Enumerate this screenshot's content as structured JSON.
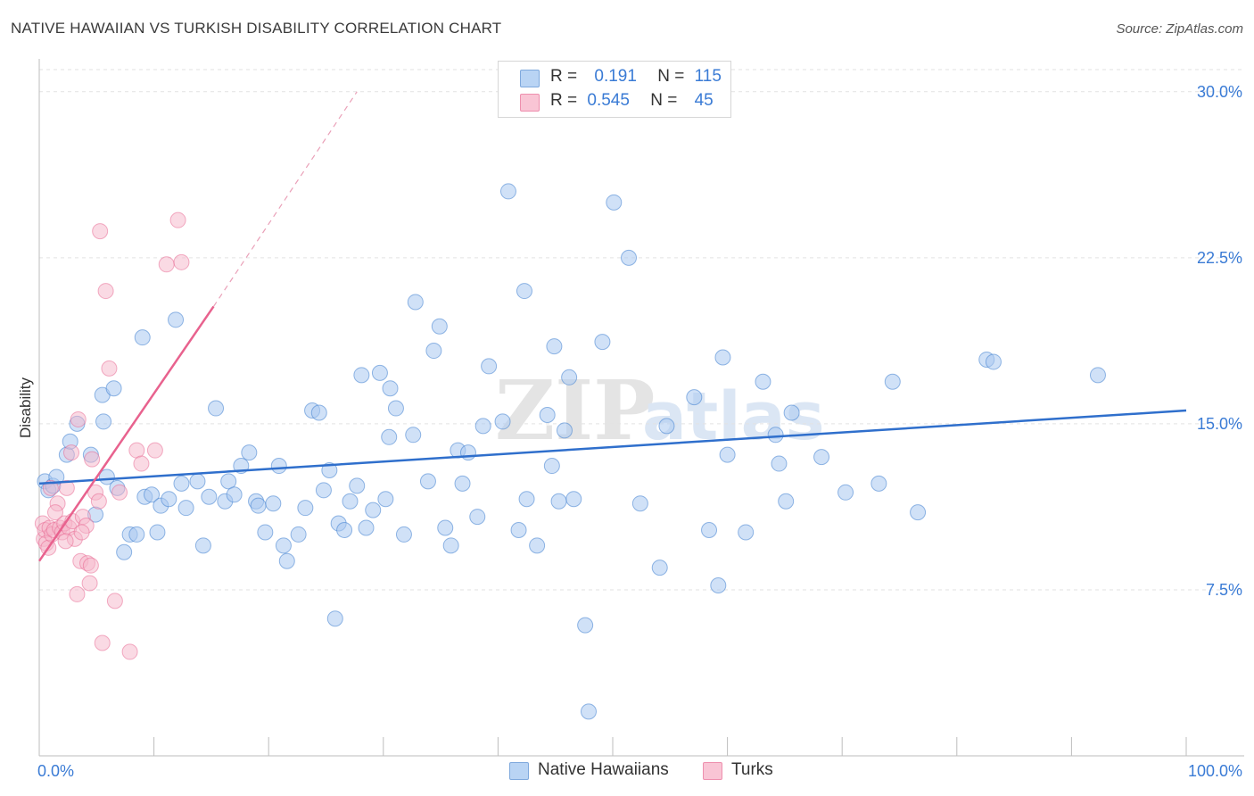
{
  "header": {
    "title": "NATIVE HAWAIIAN VS TURKISH DISABILITY CORRELATION CHART",
    "source": "Source: ZipAtlas.com"
  },
  "legend": {
    "r_label": "R =",
    "n_label": "N =",
    "rows": [
      {
        "r": "0.191",
        "n": "115"
      },
      {
        "r": "0.545",
        "n": "45"
      }
    ]
  },
  "watermark": {
    "zip": "ZIP",
    "atlas": "atlas"
  },
  "chart_data": {
    "type": "scatter",
    "title": "NATIVE HAWAIIAN VS TURKISH DISABILITY CORRELATION CHART",
    "xlabel": "",
    "ylabel": "Disability",
    "xlim": [
      0,
      100
    ],
    "ylim": [
      0,
      31
    ],
    "x_tick_labels": [
      "0.0%",
      "100.0%"
    ],
    "y_ticks": [
      7.5,
      15.0,
      22.5,
      30.0
    ],
    "y_tick_labels": [
      "7.5%",
      "15.0%",
      "22.5%",
      "30.0%"
    ],
    "grid": true,
    "colors": {
      "blue": "#3f7fcf",
      "blue_fill": "#a9c8f0",
      "pink": "#e8628e",
      "pink_fill": "#f6b6c9",
      "axis_text": "#3a7bd5"
    },
    "series": [
      {
        "name": "Native Hawaiians",
        "r": 0.191,
        "n": 115,
        "trend": {
          "x0": 0,
          "y0": 12.3,
          "x1": 100,
          "y1": 15.6
        },
        "points": [
          [
            0.5,
            12.4
          ],
          [
            0.8,
            12.0
          ],
          [
            1.2,
            12.2
          ],
          [
            1.5,
            12.6
          ],
          [
            2.4,
            13.6
          ],
          [
            2.7,
            14.2
          ],
          [
            3.3,
            15.0
          ],
          [
            4.5,
            13.6
          ],
          [
            4.9,
            10.9
          ],
          [
            5.5,
            16.3
          ],
          [
            5.6,
            15.1
          ],
          [
            5.9,
            12.6
          ],
          [
            6.5,
            16.6
          ],
          [
            6.8,
            12.1
          ],
          [
            7.4,
            9.2
          ],
          [
            7.9,
            10.0
          ],
          [
            8.5,
            10.0
          ],
          [
            9.0,
            18.9
          ],
          [
            9.2,
            11.7
          ],
          [
            9.8,
            11.8
          ],
          [
            10.3,
            10.1
          ],
          [
            10.6,
            11.3
          ],
          [
            11.3,
            11.6
          ],
          [
            11.9,
            19.7
          ],
          [
            12.4,
            12.3
          ],
          [
            12.8,
            11.2
          ],
          [
            13.8,
            12.4
          ],
          [
            14.3,
            9.5
          ],
          [
            14.8,
            11.7
          ],
          [
            15.4,
            15.7
          ],
          [
            16.2,
            11.5
          ],
          [
            16.5,
            12.4
          ],
          [
            17.0,
            11.8
          ],
          [
            17.6,
            13.1
          ],
          [
            18.3,
            13.7
          ],
          [
            18.9,
            11.5
          ],
          [
            19.1,
            11.3
          ],
          [
            19.7,
            10.1
          ],
          [
            20.4,
            11.4
          ],
          [
            20.9,
            13.1
          ],
          [
            21.3,
            9.5
          ],
          [
            21.6,
            8.8
          ],
          [
            22.6,
            10.0
          ],
          [
            23.2,
            11.2
          ],
          [
            23.8,
            15.6
          ],
          [
            24.4,
            15.5
          ],
          [
            24.8,
            12.0
          ],
          [
            25.3,
            12.9
          ],
          [
            25.8,
            6.2
          ],
          [
            26.1,
            10.5
          ],
          [
            26.6,
            10.2
          ],
          [
            27.1,
            11.5
          ],
          [
            27.7,
            12.2
          ],
          [
            28.1,
            17.2
          ],
          [
            28.5,
            10.3
          ],
          [
            29.1,
            11.1
          ],
          [
            29.7,
            17.3
          ],
          [
            30.2,
            11.6
          ],
          [
            30.6,
            16.6
          ],
          [
            30.5,
            14.4
          ],
          [
            31.1,
            15.7
          ],
          [
            31.8,
            10.0
          ],
          [
            32.6,
            14.5
          ],
          [
            32.8,
            20.5
          ],
          [
            33.9,
            12.4
          ],
          [
            34.4,
            18.3
          ],
          [
            34.9,
            19.4
          ],
          [
            35.4,
            10.3
          ],
          [
            35.9,
            9.5
          ],
          [
            36.5,
            13.8
          ],
          [
            37.4,
            13.7
          ],
          [
            38.2,
            10.8
          ],
          [
            38.7,
            14.9
          ],
          [
            39.2,
            17.6
          ],
          [
            40.9,
            25.5
          ],
          [
            40.4,
            15.1
          ],
          [
            41.8,
            10.2
          ],
          [
            42.3,
            21.0
          ],
          [
            42.5,
            11.6
          ],
          [
            43.4,
            9.5
          ],
          [
            44.3,
            15.4
          ],
          [
            44.7,
            13.1
          ],
          [
            44.9,
            18.5
          ],
          [
            45.8,
            14.7
          ],
          [
            46.2,
            17.1
          ],
          [
            46.6,
            11.6
          ],
          [
            47.6,
            5.9
          ],
          [
            47.9,
            2.0
          ],
          [
            49.1,
            18.7
          ],
          [
            50.1,
            25.0
          ],
          [
            51.4,
            22.5
          ],
          [
            52.4,
            11.4
          ],
          [
            54.1,
            8.5
          ],
          [
            57.1,
            16.2
          ],
          [
            58.4,
            10.2
          ],
          [
            59.2,
            7.7
          ],
          [
            59.6,
            18.0
          ],
          [
            60.0,
            13.6
          ],
          [
            61.6,
            10.1
          ],
          [
            63.1,
            16.9
          ],
          [
            64.2,
            14.5
          ],
          [
            64.5,
            13.2
          ],
          [
            65.1,
            11.5
          ],
          [
            65.6,
            15.5
          ],
          [
            68.2,
            13.5
          ],
          [
            70.3,
            11.9
          ],
          [
            73.2,
            12.3
          ],
          [
            74.4,
            16.9
          ],
          [
            76.6,
            11.0
          ],
          [
            82.6,
            17.9
          ],
          [
            83.2,
            17.8
          ],
          [
            92.3,
            17.2
          ],
          [
            45.3,
            11.5
          ],
          [
            36.9,
            12.3
          ],
          [
            54.7,
            14.9
          ]
        ]
      },
      {
        "name": "Turks",
        "r": 0.545,
        "n": 45,
        "trend": {
          "x0": 0,
          "y0": 8.8,
          "x1": 15.2,
          "y1": 20.3
        },
        "trend_dashed": {
          "x0": 15.2,
          "y0": 20.3,
          "x1": 27.7,
          "y1": 30.0
        },
        "points": [
          [
            0.3,
            10.5
          ],
          [
            0.4,
            9.8
          ],
          [
            0.5,
            10.2
          ],
          [
            0.6,
            9.6
          ],
          [
            0.8,
            9.4
          ],
          [
            0.9,
            10.3
          ],
          [
            1.1,
            10.0
          ],
          [
            1.3,
            10.2
          ],
          [
            1.6,
            11.4
          ],
          [
            1.8,
            10.3
          ],
          [
            2.0,
            10.1
          ],
          [
            2.2,
            10.5
          ],
          [
            2.4,
            12.1
          ],
          [
            2.6,
            10.3
          ],
          [
            2.8,
            13.7
          ],
          [
            2.9,
            10.6
          ],
          [
            3.1,
            9.8
          ],
          [
            3.3,
            7.3
          ],
          [
            3.4,
            15.2
          ],
          [
            3.6,
            8.8
          ],
          [
            3.8,
            10.8
          ],
          [
            4.1,
            10.4
          ],
          [
            4.2,
            8.7
          ],
          [
            4.4,
            7.8
          ],
          [
            4.6,
            13.4
          ],
          [
            4.9,
            11.9
          ],
          [
            5.2,
            11.5
          ],
          [
            5.3,
            23.7
          ],
          [
            5.5,
            5.1
          ],
          [
            5.8,
            21.0
          ],
          [
            6.1,
            17.5
          ],
          [
            6.6,
            7.0
          ],
          [
            7.0,
            11.9
          ],
          [
            7.9,
            4.7
          ],
          [
            8.5,
            13.8
          ],
          [
            8.9,
            13.2
          ],
          [
            10.1,
            13.8
          ],
          [
            11.1,
            22.2
          ],
          [
            12.1,
            24.2
          ],
          [
            12.4,
            22.3
          ],
          [
            1.0,
            12.1
          ],
          [
            2.3,
            9.7
          ],
          [
            3.7,
            10.1
          ],
          [
            4.5,
            8.6
          ],
          [
            1.4,
            11.0
          ]
        ]
      }
    ]
  },
  "bottom_legend": [
    {
      "label": "Native Hawaiians"
    },
    {
      "label": "Turks"
    }
  ]
}
